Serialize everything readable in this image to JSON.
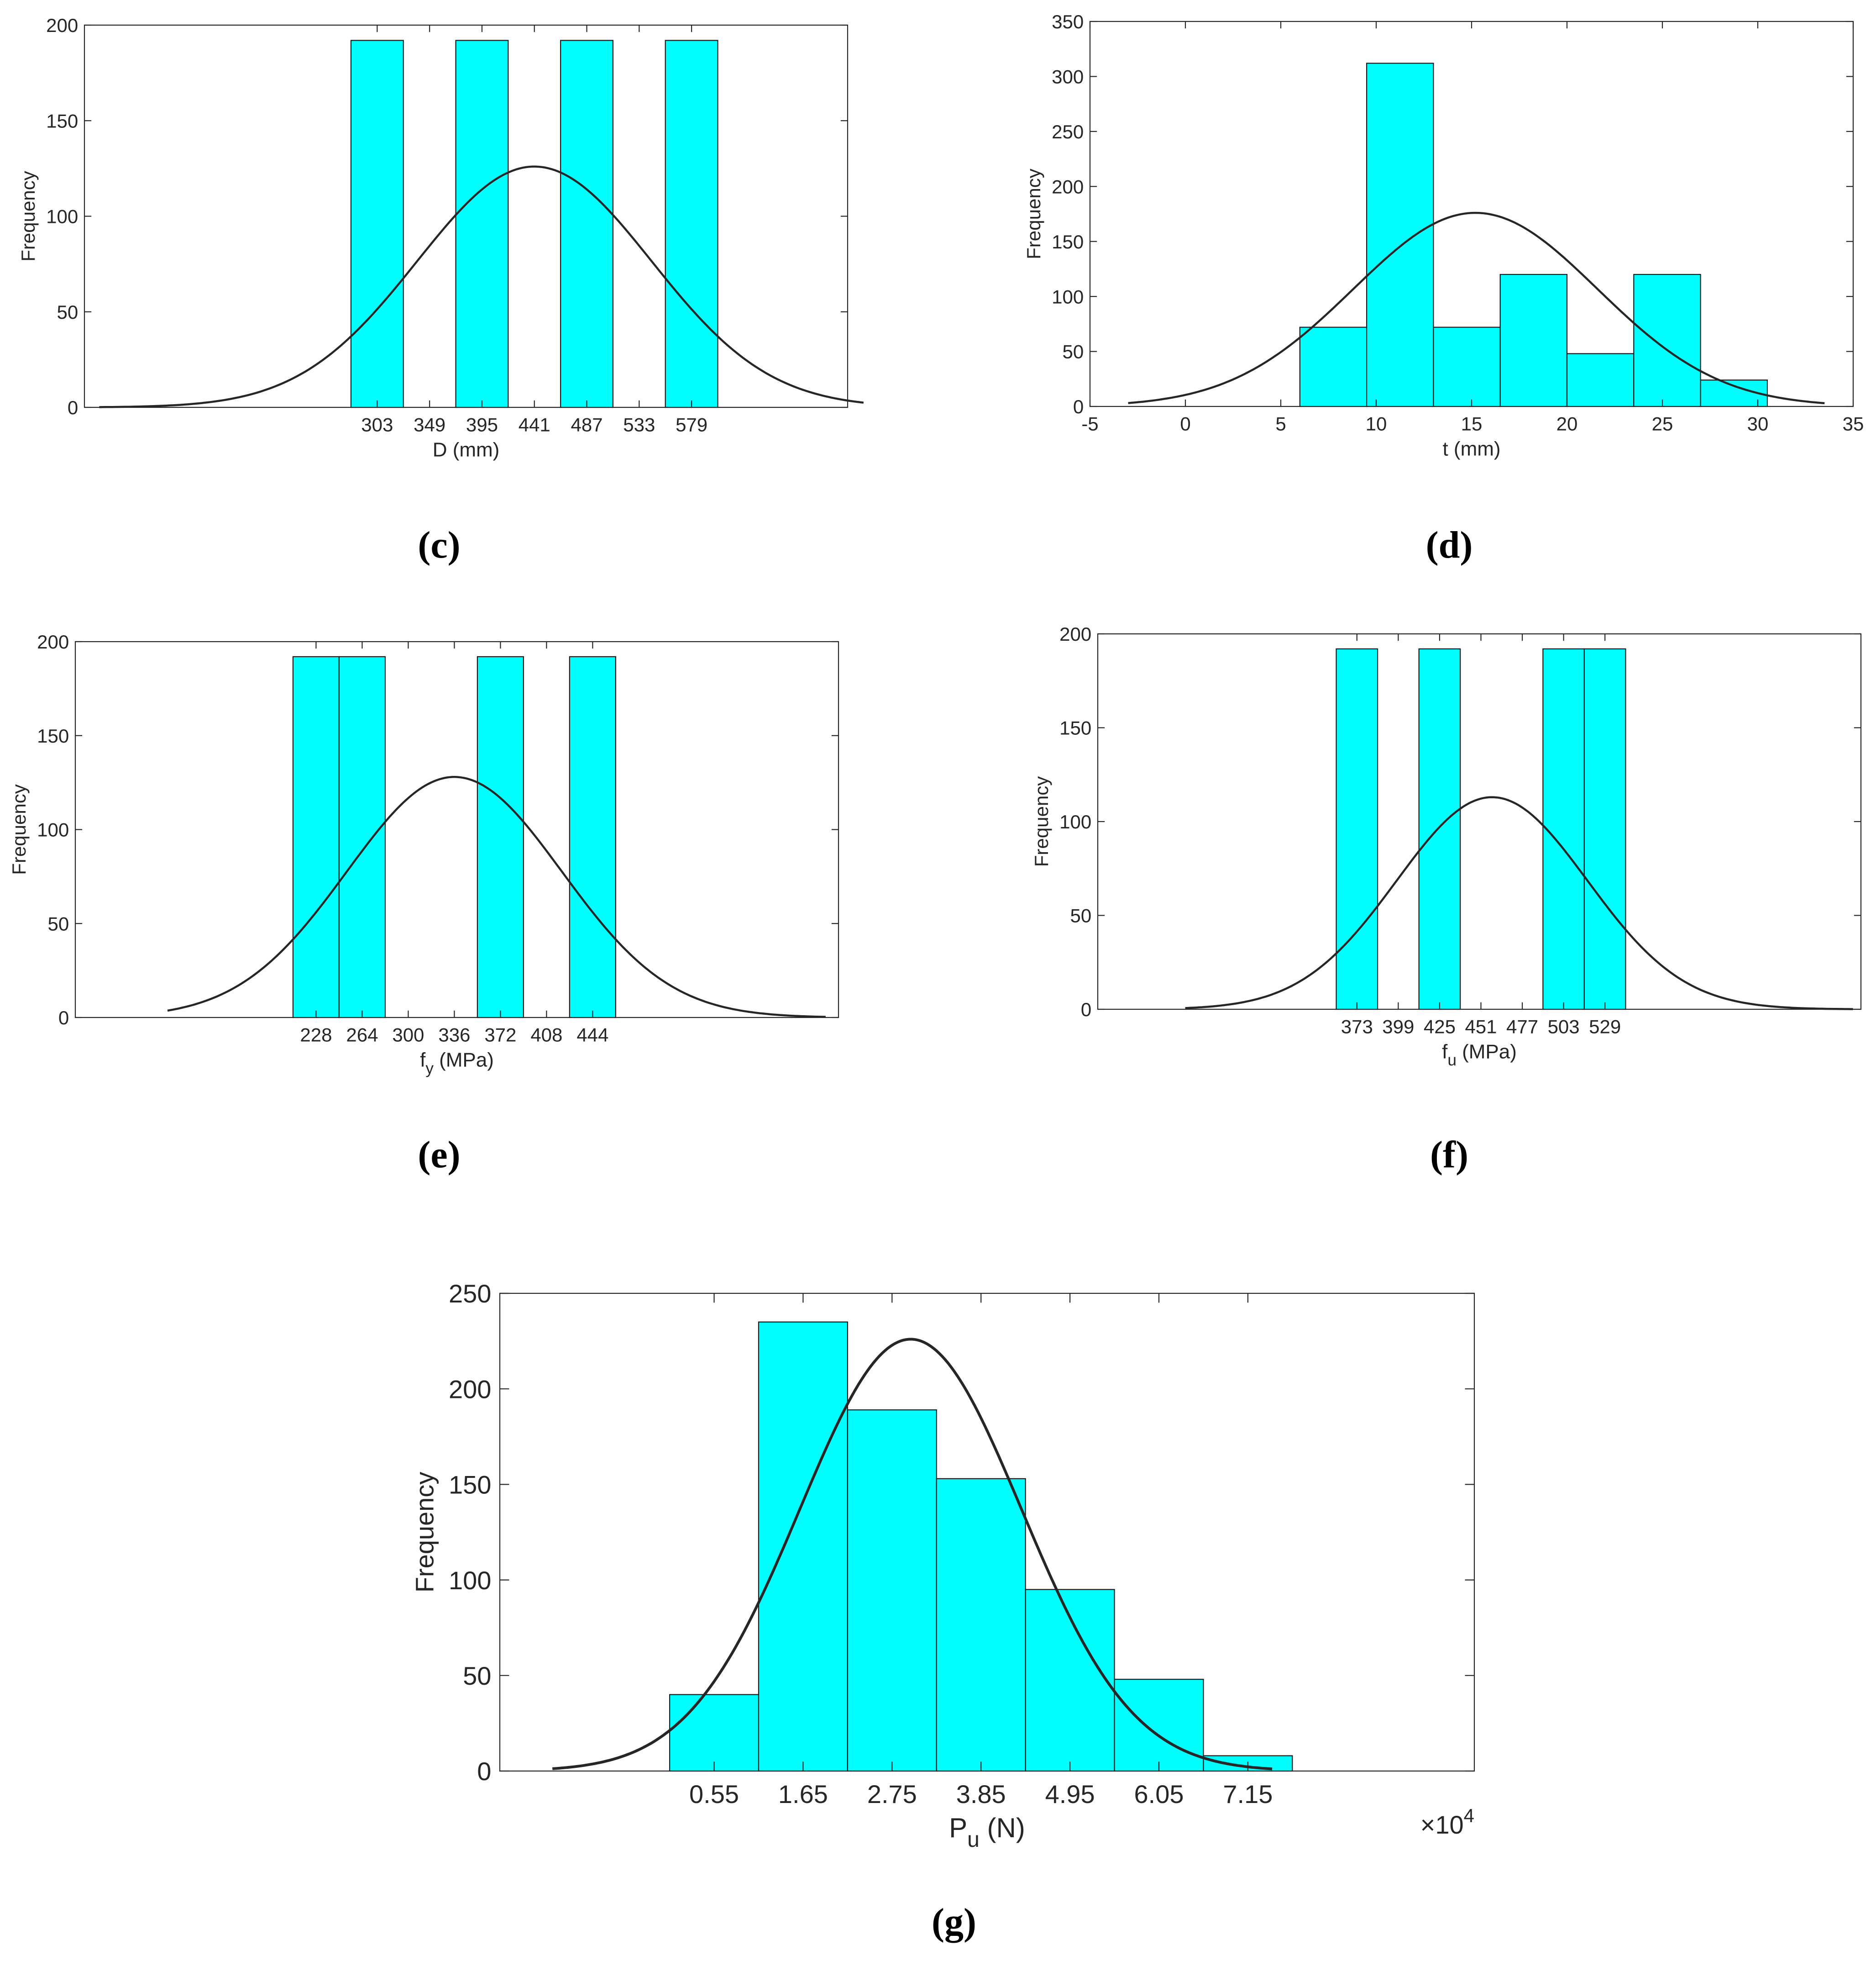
{
  "figure": {
    "panel_labels": [
      "(c)",
      "(d)",
      "(e)",
      "(f)",
      "(g)"
    ]
  },
  "colors": {
    "bar_fill": "#00ffff",
    "bar_stroke": "#1a1a1a",
    "curve": "#262626",
    "axis": "#262626",
    "text": "#262626"
  },
  "chart_data": [
    {
      "id": "c",
      "type": "bar",
      "panel_label": "(c)",
      "title": "",
      "xlabel": "D (mm)",
      "xlabel_main": "D (mm)",
      "xlabel_sub": "",
      "xlabel_rest": "",
      "ylabel": "Frequency",
      "xlim": [
        46,
        716
      ],
      "ylim": [
        0,
        200
      ],
      "yticks": [
        0,
        50,
        100,
        150,
        200
      ],
      "xticks": [
        303,
        349,
        395,
        441,
        487,
        533,
        579
      ],
      "xtick_labels": [
        "303",
        "349",
        "395",
        "441",
        "487",
        "533",
        "579"
      ],
      "bars": [
        {
          "x0": 280,
          "x1": 326,
          "value": 192
        },
        {
          "x0": 372,
          "x1": 418,
          "value": 192
        },
        {
          "x0": 464,
          "x1": 510,
          "value": 192
        },
        {
          "x0": 556,
          "x1": 602,
          "value": 192
        }
      ],
      "fit_curve": {
        "type": "normal",
        "mean": 441,
        "peak": 126,
        "sigma": 103,
        "x_start": 59,
        "x_end": 730
      },
      "exponent_label": ""
    },
    {
      "id": "d",
      "type": "bar",
      "panel_label": "(d)",
      "title": "",
      "xlabel": "t (mm)",
      "xlabel_main": "t (mm)",
      "xlabel_sub": "",
      "xlabel_rest": "",
      "ylabel": "Frequency",
      "xlim": [
        -5,
        35
      ],
      "ylim": [
        0,
        350
      ],
      "yticks": [
        0,
        50,
        100,
        150,
        200,
        250,
        300,
        350
      ],
      "xticks": [
        -5,
        0,
        5,
        10,
        15,
        20,
        25,
        30,
        35
      ],
      "xtick_labels": [
        "-5",
        "0",
        "5",
        "10",
        "15",
        "20",
        "25",
        "30",
        "35"
      ],
      "bars": [
        {
          "x0": 6.0,
          "x1": 9.5,
          "value": 72
        },
        {
          "x0": 9.5,
          "x1": 13.0,
          "value": 312
        },
        {
          "x0": 13.0,
          "x1": 16.5,
          "value": 72
        },
        {
          "x0": 16.5,
          "x1": 20.0,
          "value": 120
        },
        {
          "x0": 20.0,
          "x1": 23.5,
          "value": 48
        },
        {
          "x0": 23.5,
          "x1": 27.0,
          "value": 120
        },
        {
          "x0": 27.0,
          "x1": 30.5,
          "value": 24
        }
      ],
      "fit_curve": {
        "type": "normal",
        "mean": 15.2,
        "peak": 176,
        "sigma": 6.4,
        "x_start": -3,
        "x_end": 33.5
      },
      "exponent_label": ""
    },
    {
      "id": "e",
      "type": "bar",
      "panel_label": "(e)",
      "title": "",
      "xlabel": "fy (MPa)",
      "xlabel_main": "f",
      "xlabel_sub": "y",
      "xlabel_rest": " (MPa)",
      "ylabel": "Frequency",
      "xlim": [
        40,
        636
      ],
      "ylim": [
        0,
        200
      ],
      "yticks": [
        0,
        50,
        100,
        150,
        200
      ],
      "xticks": [
        228,
        264,
        300,
        336,
        372,
        408,
        444
      ],
      "xtick_labels": [
        "228",
        "264",
        "300",
        "336",
        "372",
        "408",
        "444"
      ],
      "bars": [
        {
          "x0": 210,
          "x1": 246,
          "value": 192
        },
        {
          "x0": 246,
          "x1": 282,
          "value": 192
        },
        {
          "x0": 354,
          "x1": 390,
          "value": 192
        },
        {
          "x0": 426,
          "x1": 462,
          "value": 192
        }
      ],
      "fit_curve": {
        "type": "normal",
        "mean": 336,
        "peak": 128,
        "sigma": 84,
        "x_start": 112,
        "x_end": 626
      },
      "exponent_label": ""
    },
    {
      "id": "f",
      "type": "bar",
      "panel_label": "(f)",
      "title": "",
      "xlabel": "fu (MPa)",
      "xlabel_main": "f",
      "xlabel_sub": "u",
      "xlabel_rest": " (MPa)",
      "ylabel": "Frequency",
      "xlim": [
        210,
        690
      ],
      "ylim": [
        0,
        200
      ],
      "yticks": [
        0,
        50,
        100,
        150,
        200
      ],
      "xticks": [
        373,
        399,
        425,
        451,
        477,
        503,
        529
      ],
      "xtick_labels": [
        "373",
        "399",
        "425",
        "451",
        "477",
        "503",
        "529"
      ],
      "bars": [
        {
          "x0": 360,
          "x1": 386,
          "value": 192
        },
        {
          "x0": 412,
          "x1": 438,
          "value": 192
        },
        {
          "x0": 490,
          "x1": 516,
          "value": 192
        },
        {
          "x0": 516,
          "x1": 542,
          "value": 192
        }
      ],
      "fit_curve": {
        "type": "normal",
        "mean": 458,
        "peak": 113,
        "sigma": 60,
        "x_start": 265,
        "x_end": 685
      },
      "exponent_label": ""
    },
    {
      "id": "g",
      "type": "bar",
      "panel_label": "(g)",
      "title": "",
      "xlabel": "Pu (N)",
      "xlabel_main": "P",
      "xlabel_sub": "u",
      "xlabel_rest": " (N)",
      "ylabel": "Frequency",
      "xlim": [
        -2.1,
        9.95
      ],
      "ylim": [
        0,
        250
      ],
      "yticks": [
        0,
        50,
        100,
        150,
        200,
        250
      ],
      "xticks": [
        0.55,
        1.65,
        2.75,
        3.85,
        4.95,
        6.05,
        7.15
      ],
      "xtick_labels": [
        "0.55",
        "1.65",
        "2.75",
        "3.85",
        "4.95",
        "6.05",
        "7.15"
      ],
      "bars": [
        {
          "x0": 0.0,
          "x1": 1.1,
          "value": 40
        },
        {
          "x0": 1.1,
          "x1": 2.2,
          "value": 235
        },
        {
          "x0": 2.2,
          "x1": 3.3,
          "value": 189
        },
        {
          "x0": 3.3,
          "x1": 4.4,
          "value": 153
        },
        {
          "x0": 4.4,
          "x1": 5.5,
          "value": 95
        },
        {
          "x0": 5.5,
          "x1": 6.6,
          "value": 48
        },
        {
          "x0": 6.6,
          "x1": 7.7,
          "value": 8
        }
      ],
      "fit_curve": {
        "type": "normal",
        "mean": 2.98,
        "peak": 226,
        "sigma": 1.37,
        "x_start": -1.45,
        "x_end": 7.45
      },
      "exponent_label": "×10",
      "exponent_power": "4"
    }
  ]
}
